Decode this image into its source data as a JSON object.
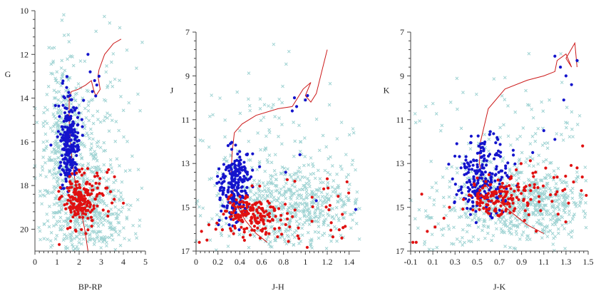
{
  "chart_data": [
    {
      "type": "scatter",
      "xlabel": "BP-RP",
      "ylabel": "G",
      "xlim": [
        0,
        5
      ],
      "ylim": [
        21,
        10
      ],
      "y_inverted": true,
      "xticks": [
        "0",
        "1",
        "2",
        "3",
        "4",
        "5"
      ],
      "yticks": [
        "10",
        "12",
        "14",
        "16",
        "18",
        "20"
      ],
      "series": [
        {
          "role": "field",
          "marker": "x",
          "color": "#9fd3d3",
          "clusters": [
            {
              "cx": 1.8,
              "cy": 17.8,
              "sx": 0.9,
              "sy": 1.8,
              "n": 480
            },
            {
              "cx": 1.3,
              "cy": 15.0,
              "sx": 0.4,
              "sy": 1.6,
              "n": 200
            },
            {
              "cx": 2.6,
              "cy": 19.5,
              "sx": 0.9,
              "sy": 0.9,
              "n": 240
            },
            {
              "cx": 3.0,
              "cy": 14.0,
              "sx": 1.1,
              "sy": 2.0,
              "n": 70
            }
          ]
        },
        {
          "role": "members-blue",
          "marker": "dot",
          "color": "#1414cc",
          "clusters": [
            {
              "cx": 1.55,
              "cy": 16.0,
              "sx": 0.22,
              "sy": 0.95,
              "n": 230
            }
          ],
          "points": [
            [
              2.4,
              12.0
            ],
            [
              2.5,
              12.8
            ],
            [
              2.7,
              13.2
            ],
            [
              2.8,
              13.4
            ],
            [
              2.6,
              13.7
            ],
            [
              2.9,
              13.0
            ],
            [
              2.75,
              13.9
            ],
            [
              2.2,
              14.1
            ]
          ]
        },
        {
          "role": "members-red",
          "marker": "dot",
          "color": "#e01010",
          "clusters": [
            {
              "cx": 2.0,
              "cy": 18.6,
              "sx": 0.35,
              "sy": 0.55,
              "n": 170
            },
            {
              "cx": 2.9,
              "cy": 18.3,
              "sx": 0.5,
              "sy": 0.6,
              "n": 30
            }
          ],
          "points": [
            [
              1.1,
              20.7
            ],
            [
              3.6,
              17.6
            ],
            [
              3.3,
              19.4
            ],
            [
              2.6,
              19.6
            ]
          ]
        },
        {
          "role": "isochrone",
          "marker": "line",
          "color": "#cc1a1a",
          "line": [
            [
              2.4,
              21.0
            ],
            [
              2.25,
              20.0
            ],
            [
              2.05,
              19.0
            ],
            [
              1.85,
              18.0
            ],
            [
              1.7,
              17.0
            ],
            [
              1.6,
              16.0
            ],
            [
              1.55,
              15.0
            ],
            [
              1.55,
              14.0
            ],
            [
              1.65,
              13.7
            ],
            [
              1.95,
              13.6
            ],
            [
              2.3,
              13.4
            ],
            [
              2.55,
              13.2
            ],
            [
              2.65,
              13.6
            ],
            [
              2.75,
              13.9
            ],
            [
              2.95,
              13.6
            ],
            [
              2.85,
              13.0
            ],
            [
              2.9,
              12.7
            ],
            [
              3.15,
              12.0
            ],
            [
              3.55,
              11.5
            ],
            [
              3.9,
              11.3
            ]
          ]
        }
      ]
    },
    {
      "type": "scatter",
      "xlabel": "J-H",
      "ylabel": "J",
      "xlim": [
        0,
        1.5
      ],
      "ylim": [
        17,
        7
      ],
      "y_inverted": true,
      "xticks": [
        "0",
        "0.2",
        "0.4",
        "0.6",
        "0.8",
        "1",
        "1.2",
        "1.4"
      ],
      "yticks": [
        "7",
        "9",
        "11",
        "13",
        "15",
        "17"
      ],
      "series": [
        {
          "role": "field",
          "marker": "x",
          "color": "#9fd3d3",
          "clusters": [
            {
              "cx": 0.85,
              "cy": 15.0,
              "sx": 0.35,
              "sy": 1.0,
              "n": 620
            },
            {
              "cx": 0.6,
              "cy": 12.5,
              "sx": 0.45,
              "sy": 2.2,
              "n": 150
            }
          ]
        },
        {
          "role": "members-blue",
          "marker": "dot",
          "color": "#1414cc",
          "clusters": [
            {
              "cx": 0.35,
              "cy": 14.0,
              "sx": 0.07,
              "sy": 0.85,
              "n": 230
            }
          ],
          "points": [
            [
              0.9,
              10.0
            ],
            [
              0.92,
              10.4
            ],
            [
              1.0,
              10.1
            ],
            [
              1.02,
              9.9
            ],
            [
              0.88,
              10.6
            ],
            [
              1.1,
              14.7
            ],
            [
              0.95,
              12.6
            ],
            [
              0.82,
              13.4
            ],
            [
              1.46,
              15.1
            ]
          ]
        },
        {
          "role": "members-red",
          "marker": "dot",
          "color": "#e01010",
          "clusters": [
            {
              "cx": 0.5,
              "cy": 15.4,
              "sx": 0.13,
              "sy": 0.45,
              "n": 160
            },
            {
              "cx": 0.9,
              "cy": 15.5,
              "sx": 0.3,
              "sy": 0.9,
              "n": 45
            }
          ],
          "points": [
            [
              0.05,
              16.1
            ],
            [
              0.1,
              16.5
            ],
            [
              0.03,
              16.6
            ],
            [
              1.2,
              13.7
            ],
            [
              1.3,
              14.5
            ]
          ]
        },
        {
          "role": "isochrone",
          "marker": "line",
          "color": "#cc1a1a",
          "line": [
            [
              0.65,
              16.6
            ],
            [
              0.55,
              16.2
            ],
            [
              0.45,
              15.6
            ],
            [
              0.38,
              15.0
            ],
            [
              0.34,
              14.3
            ],
            [
              0.32,
              13.5
            ],
            [
              0.33,
              12.5
            ],
            [
              0.35,
              11.6
            ],
            [
              0.42,
              11.2
            ],
            [
              0.55,
              10.8
            ],
            [
              0.75,
              10.5
            ],
            [
              0.88,
              10.4
            ],
            [
              0.98,
              9.6
            ],
            [
              1.05,
              9.3
            ],
            [
              1.0,
              9.9
            ],
            [
              1.05,
              10.2
            ],
            [
              1.1,
              9.8
            ],
            [
              1.15,
              8.8
            ],
            [
              1.2,
              7.8
            ]
          ]
        }
      ]
    },
    {
      "type": "scatter",
      "xlabel": "J-K",
      "ylabel": "K",
      "xlim": [
        -0.1,
        1.5
      ],
      "ylim": [
        17,
        7
      ],
      "y_inverted": true,
      "xticks": [
        "-0.1",
        "0.1",
        "0.3",
        "0.5",
        "0.7",
        "0.9",
        "1.1",
        "1.3",
        "1.5"
      ],
      "yticks": [
        "7",
        "9",
        "11",
        "13",
        "15",
        "17"
      ],
      "series": [
        {
          "role": "field",
          "marker": "x",
          "color": "#9fd3d3",
          "clusters": [
            {
              "cx": 0.95,
              "cy": 14.8,
              "sx": 0.3,
              "sy": 0.8,
              "n": 620
            },
            {
              "cx": 0.3,
              "cy": 15.6,
              "sx": 0.25,
              "sy": 0.9,
              "n": 80
            },
            {
              "cx": 0.8,
              "cy": 12.0,
              "sx": 0.45,
              "sy": 2.2,
              "n": 140
            }
          ]
        },
        {
          "role": "members-blue",
          "marker": "dot",
          "color": "#1414cc",
          "clusters": [
            {
              "cx": 0.55,
              "cy": 13.6,
              "sx": 0.12,
              "sy": 0.85,
              "n": 220
            }
          ],
          "points": [
            [
              1.2,
              8.1
            ],
            [
              1.25,
              8.6
            ],
            [
              1.3,
              9.0
            ],
            [
              1.35,
              9.4
            ],
            [
              1.4,
              8.3
            ],
            [
              1.28,
              10.1
            ],
            [
              1.1,
              11.5
            ],
            [
              1.2,
              11.9
            ],
            [
              1.0,
              12.5
            ]
          ]
        },
        {
          "role": "members-red",
          "marker": "dot",
          "color": "#e01010",
          "clusters": [
            {
              "cx": 0.7,
              "cy": 14.6,
              "sx": 0.15,
              "sy": 0.4,
              "n": 140
            },
            {
              "cx": 1.2,
              "cy": 14.2,
              "sx": 0.2,
              "sy": 0.8,
              "n": 40
            }
          ],
          "points": [
            [
              -0.08,
              16.6
            ],
            [
              -0.05,
              16.6
            ],
            [
              0.0,
              14.4
            ],
            [
              0.05,
              16.1
            ],
            [
              0.12,
              15.9
            ],
            [
              0.2,
              15.5
            ],
            [
              0.25,
              15.0
            ],
            [
              1.45,
              12.2
            ],
            [
              1.4,
              13.2
            ]
          ]
        },
        {
          "role": "isochrone",
          "marker": "line",
          "color": "#cc1a1a",
          "line": [
            [
              1.1,
              16.2
            ],
            [
              0.95,
              15.8
            ],
            [
              0.8,
              15.2
            ],
            [
              0.65,
              14.5
            ],
            [
              0.55,
              13.8
            ],
            [
              0.52,
              13.0
            ],
            [
              0.53,
              12.0
            ],
            [
              0.6,
              10.5
            ],
            [
              0.75,
              9.6
            ],
            [
              0.95,
              9.2
            ],
            [
              1.1,
              9.0
            ],
            [
              1.2,
              8.8
            ],
            [
              1.22,
              8.3
            ],
            [
              1.3,
              8.0
            ],
            [
              1.35,
              8.6
            ],
            [
              1.3,
              8.2
            ],
            [
              1.38,
              7.5
            ],
            [
              1.4,
              8.6
            ]
          ]
        }
      ]
    }
  ]
}
